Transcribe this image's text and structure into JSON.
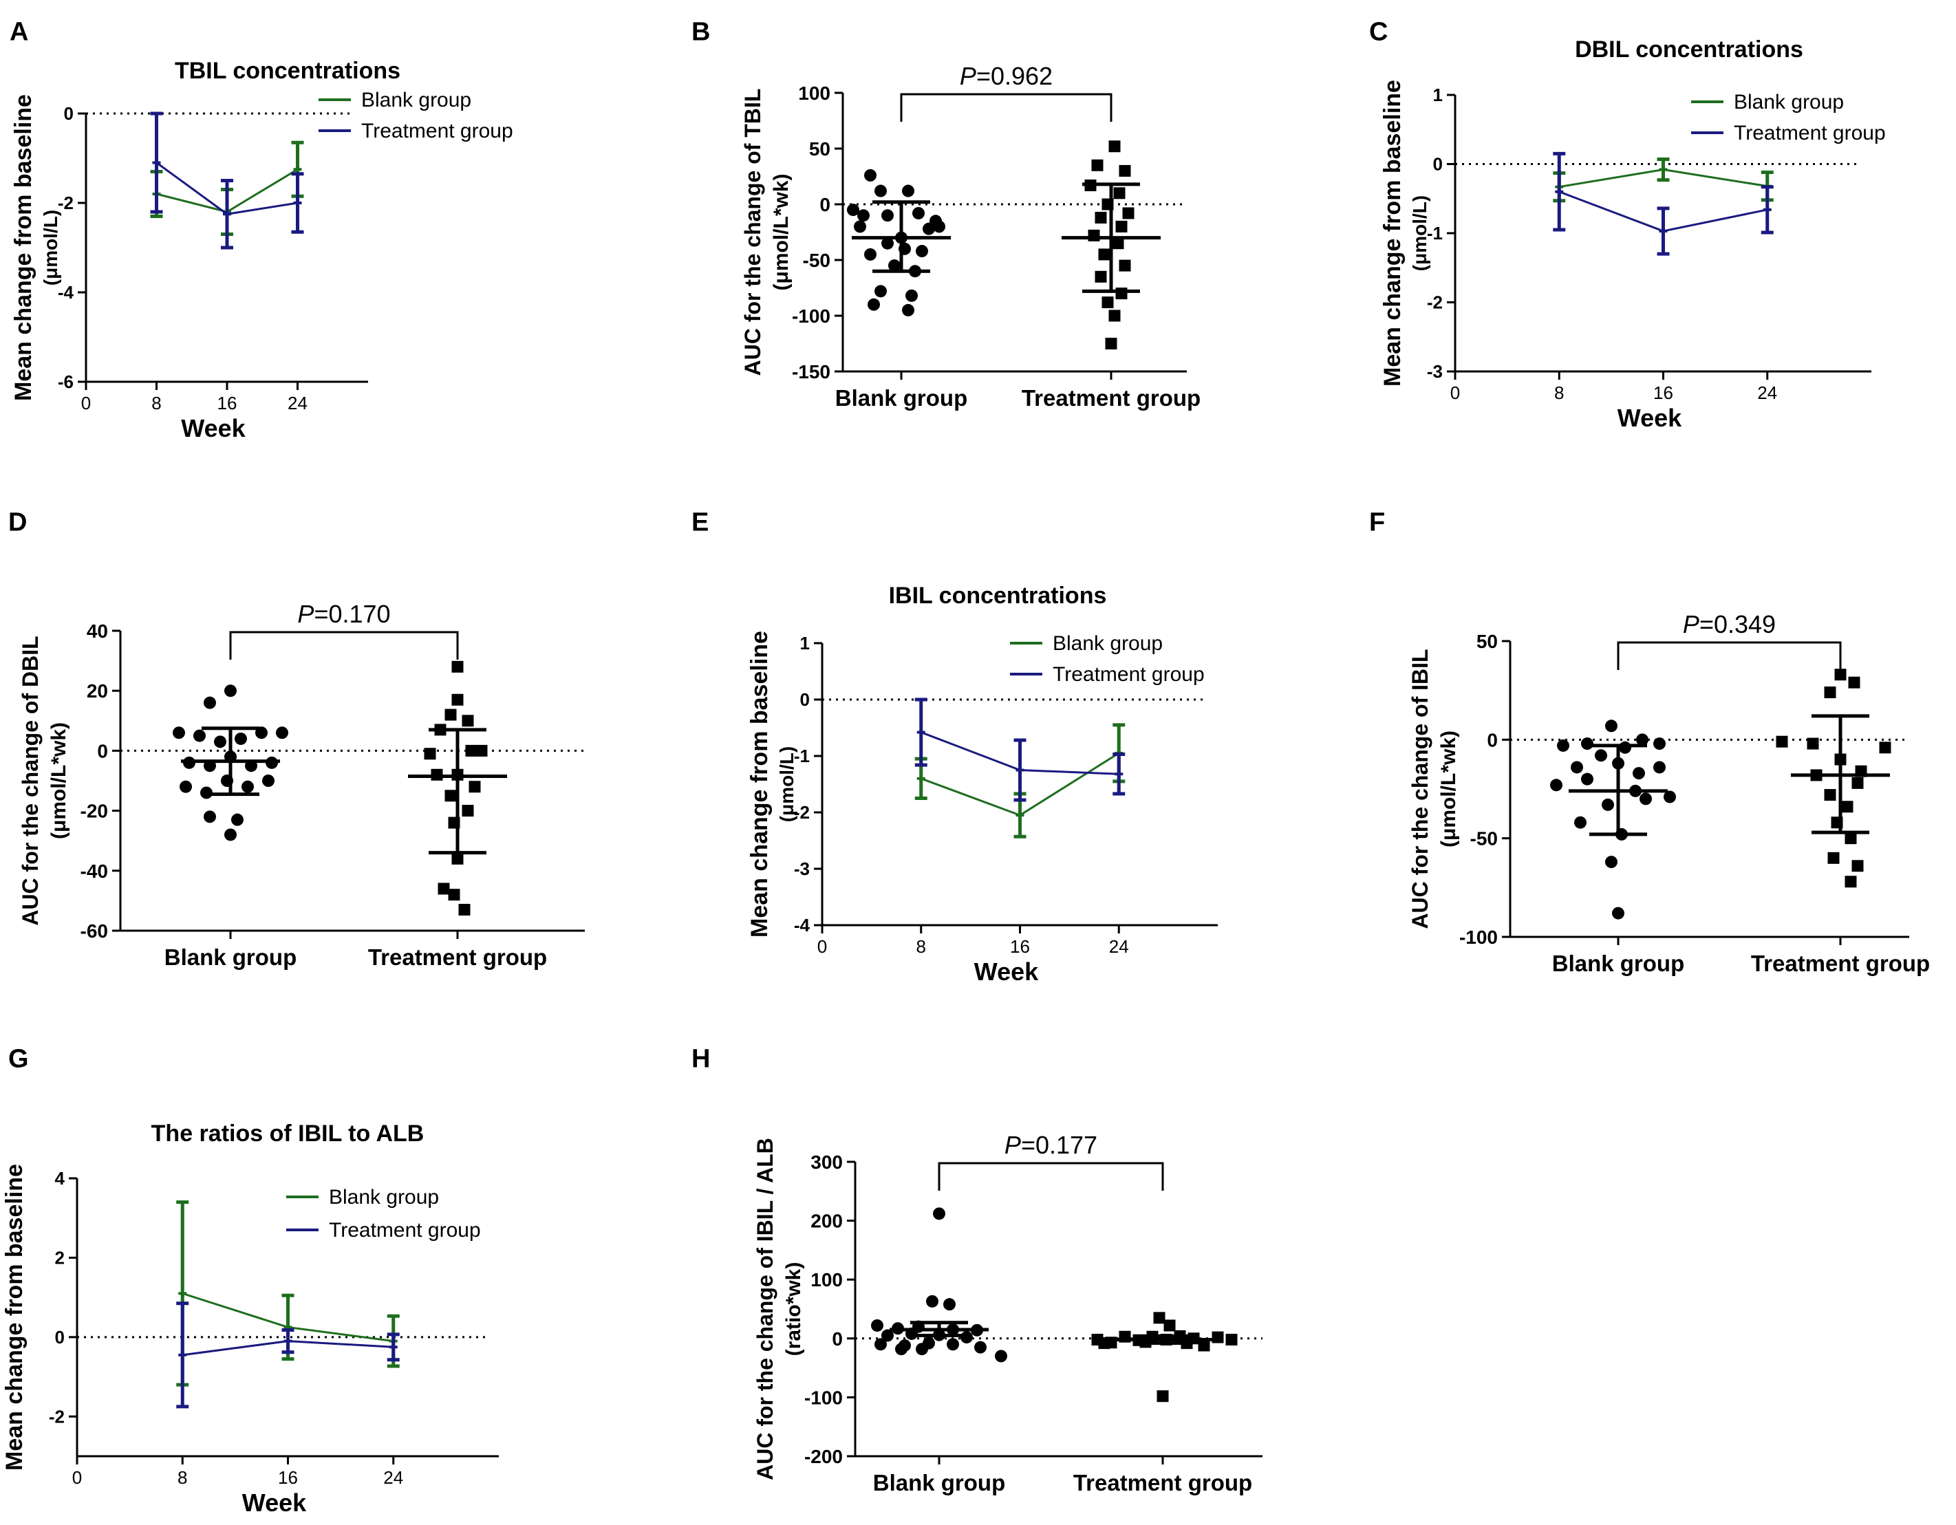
{
  "colors": {
    "blank": "#1e6e1e",
    "treatment": "#1a1a80",
    "axis": "#000000"
  },
  "chart_data": [
    {
      "panel": "A",
      "type": "line",
      "title": "TBIL concentrations",
      "xlabel": "Week",
      "ylabel": "Mean change from baseline",
      "ylabel2": "(μmol/L)",
      "x_ticks": [
        "0",
        "8",
        "16",
        "24"
      ],
      "y_ticks": [
        "0",
        "-2",
        "-4",
        "-6"
      ],
      "xlim": [
        0,
        32
      ],
      "ylim": [
        -6,
        0
      ],
      "x": [
        8,
        16,
        24
      ],
      "legend": "top-right",
      "series": [
        {
          "name": "Blank group",
          "color": "blank",
          "values": [
            -1.8,
            -2.2,
            -1.25
          ],
          "err_low": [
            0.5,
            0.5,
            0.6
          ],
          "err_high": [
            0.5,
            0.5,
            0.6
          ]
        },
        {
          "name": "Treatment group",
          "color": "treatment",
          "values": [
            -1.1,
            -2.25,
            -2.0
          ],
          "err_low": [
            1.1,
            0.75,
            0.65
          ],
          "err_high": [
            1.1,
            0.75,
            0.65
          ]
        }
      ]
    },
    {
      "panel": "B",
      "type": "scatter",
      "ylabel": "AUC for the change of TBIL",
      "ylabel2": "(μmol/L*wk)",
      "categories": [
        "Blank group",
        "Treatment group"
      ],
      "y_ticks": [
        "100",
        "50",
        "0",
        "-50",
        "-100",
        "-150"
      ],
      "ylim": [
        -150,
        100
      ],
      "p_label": "P",
      "p_value": "=0.962",
      "groups": [
        {
          "marker": "circle",
          "mean": -30,
          "sd_low": -60,
          "sd_high": 2,
          "points": [
            [
              -45,
              26
            ],
            [
              -30,
              12
            ],
            [
              10,
              12
            ],
            [
              -20,
              -10
            ],
            [
              -55,
              -10
            ],
            [
              25,
              -8
            ],
            [
              50,
              -15
            ],
            [
              -70,
              -5
            ],
            [
              55,
              -20
            ],
            [
              40,
              -22
            ],
            [
              -60,
              -20
            ],
            [
              -20,
              -35
            ],
            [
              5,
              -40
            ],
            [
              30,
              -42
            ],
            [
              -45,
              -45
            ],
            [
              -10,
              -55
            ],
            [
              20,
              -60
            ],
            [
              -30,
              -78
            ],
            [
              15,
              -82
            ],
            [
              -40,
              -90
            ],
            [
              10,
              -95
            ],
            [
              0,
              -30
            ]
          ]
        },
        {
          "marker": "square",
          "mean": -30,
          "sd_low": -78,
          "sd_high": 18,
          "points": [
            [
              5,
              52
            ],
            [
              -20,
              35
            ],
            [
              20,
              30
            ],
            [
              -30,
              17
            ],
            [
              12,
              10
            ],
            [
              -5,
              0
            ],
            [
              25,
              -8
            ],
            [
              -15,
              -12
            ],
            [
              15,
              -20
            ],
            [
              -25,
              -28
            ],
            [
              10,
              -35
            ],
            [
              -10,
              -45
            ],
            [
              20,
              -55
            ],
            [
              -15,
              -65
            ],
            [
              15,
              -80
            ],
            [
              -5,
              -88
            ],
            [
              5,
              -100
            ],
            [
              0,
              -125
            ]
          ]
        }
      ]
    },
    {
      "panel": "C",
      "type": "line",
      "title": "DBIL concentrations",
      "xlabel": "Week",
      "ylabel": "Mean change from baseline",
      "ylabel2": "(μmol/L)",
      "x_ticks": [
        "0",
        "8",
        "16",
        "24"
      ],
      "y_ticks": [
        "1",
        "0",
        "-1",
        "-2",
        "-3"
      ],
      "xlim": [
        0,
        32
      ],
      "ylim": [
        -3,
        1
      ],
      "x": [
        8,
        16,
        24
      ],
      "legend": "top-right",
      "series": [
        {
          "name": "Blank group",
          "color": "blank",
          "values": [
            -0.33,
            -0.08,
            -0.32
          ],
          "err_low": [
            0.2,
            0.15,
            0.2
          ],
          "err_high": [
            0.2,
            0.15,
            0.2
          ]
        },
        {
          "name": "Treatment group",
          "color": "treatment",
          "values": [
            -0.4,
            -0.97,
            -0.66
          ],
          "err_low": [
            0.55,
            0.33,
            0.33
          ],
          "err_high": [
            0.55,
            0.33,
            0.33
          ]
        }
      ]
    },
    {
      "panel": "D",
      "type": "scatter",
      "ylabel": "AUC for the change of DBIL",
      "ylabel2": "(μmol/L*wk)",
      "categories": [
        "Blank group",
        "Treatment group"
      ],
      "y_ticks": [
        "40",
        "20",
        "0",
        "-20",
        "-40",
        "-60"
      ],
      "ylim": [
        -60,
        40
      ],
      "p_label": "P",
      "p_value": "=0.170",
      "groups": [
        {
          "marker": "circle",
          "mean": -3.5,
          "sd_low": -14.5,
          "sd_high": 7.5,
          "points": [
            [
              0,
              20
            ],
            [
              -30,
              16
            ],
            [
              -75,
              6
            ],
            [
              -45,
              5
            ],
            [
              -15,
              3
            ],
            [
              15,
              4
            ],
            [
              45,
              6
            ],
            [
              75,
              6
            ],
            [
              -60,
              -4
            ],
            [
              -30,
              -5
            ],
            [
              0,
              -2
            ],
            [
              30,
              -5
            ],
            [
              60,
              -4
            ],
            [
              -65,
              -12
            ],
            [
              -35,
              -14
            ],
            [
              -5,
              -10
            ],
            [
              25,
              -12
            ],
            [
              55,
              -10
            ],
            [
              -30,
              -22
            ],
            [
              10,
              -23
            ],
            [
              0,
              -28
            ]
          ]
        },
        {
          "marker": "square",
          "mean": -8.5,
          "sd_low": -34,
          "sd_high": 7,
          "points": [
            [
              0,
              28
            ],
            [
              0,
              17
            ],
            [
              -10,
              12
            ],
            [
              15,
              10
            ],
            [
              -25,
              7
            ],
            [
              20,
              0
            ],
            [
              -40,
              -1
            ],
            [
              35,
              0
            ],
            [
              -30,
              -8
            ],
            [
              0,
              -8
            ],
            [
              25,
              -12
            ],
            [
              -10,
              -15
            ],
            [
              15,
              -20
            ],
            [
              -5,
              -24
            ],
            [
              0,
              -36
            ],
            [
              -20,
              -46
            ],
            [
              -5,
              -48
            ],
            [
              10,
              -53
            ]
          ]
        }
      ]
    },
    {
      "panel": "E",
      "type": "line",
      "title": "IBIL concentrations",
      "xlabel": "Week",
      "ylabel": "Mean change from baseline",
      "ylabel2": "(μmol/L)",
      "x_ticks": [
        "0",
        "8",
        "16",
        "24"
      ],
      "y_ticks": [
        "1",
        "0",
        "-1",
        "-2",
        "-3",
        "-4"
      ],
      "xlim": [
        0,
        32
      ],
      "ylim": [
        -4,
        1
      ],
      "x": [
        8,
        16,
        24
      ],
      "legend": "top-right",
      "series": [
        {
          "name": "Blank group",
          "color": "blank",
          "values": [
            -1.4,
            -2.05,
            -0.95
          ],
          "err_low": [
            0.35,
            0.38,
            0.5
          ],
          "err_high": [
            0.35,
            0.38,
            0.5
          ]
        },
        {
          "name": "Treatment group",
          "color": "treatment",
          "values": [
            -0.58,
            -1.25,
            -1.32
          ],
          "err_low": [
            0.58,
            0.53,
            0.35
          ],
          "err_high": [
            0.58,
            0.53,
            0.35
          ]
        }
      ]
    },
    {
      "panel": "F",
      "type": "scatter",
      "ylabel": "AUC for the change of IBIL",
      "ylabel2": "(μmol/L*wk)",
      "categories": [
        "Blank group",
        "Treatment group"
      ],
      "y_ticks": [
        "50",
        "0",
        "-50",
        "-100"
      ],
      "ylim": [
        -100,
        50
      ],
      "p_label": "P",
      "p_value": "=0.349",
      "groups": [
        {
          "marker": "circle",
          "mean": -26,
          "sd_low": -48,
          "sd_high": -3,
          "points": [
            [
              -10,
              7
            ],
            [
              35,
              0
            ],
            [
              60,
              -2
            ],
            [
              -45,
              -2
            ],
            [
              -80,
              -3
            ],
            [
              10,
              -4
            ],
            [
              -25,
              -8
            ],
            [
              0,
              -12
            ],
            [
              -60,
              -14
            ],
            [
              30,
              -17
            ],
            [
              60,
              -14
            ],
            [
              -90,
              -23
            ],
            [
              -45,
              -20
            ],
            [
              25,
              -26
            ],
            [
              -15,
              -33
            ],
            [
              -55,
              -42
            ],
            [
              5,
              -48
            ],
            [
              -10,
              -62
            ],
            [
              0,
              -88
            ],
            [
              40,
              -30
            ],
            [
              75,
              -29
            ]
          ]
        },
        {
          "marker": "square",
          "mean": -18,
          "sd_low": -47,
          "sd_high": 12,
          "points": [
            [
              0,
              33
            ],
            [
              20,
              29
            ],
            [
              -15,
              24
            ],
            [
              -85,
              -1
            ],
            [
              -40,
              -2
            ],
            [
              65,
              -4
            ],
            [
              0,
              -10
            ],
            [
              30,
              -16
            ],
            [
              -35,
              -18
            ],
            [
              25,
              -22
            ],
            [
              -15,
              -28
            ],
            [
              10,
              -34
            ],
            [
              -5,
              -42
            ],
            [
              15,
              -50
            ],
            [
              -10,
              -60
            ],
            [
              25,
              -64
            ],
            [
              15,
              -72
            ]
          ]
        }
      ]
    },
    {
      "panel": "G",
      "type": "line",
      "title": "The ratios of IBIL to ALB",
      "xlabel": "Week",
      "ylabel": "Mean change from baseline",
      "ylabel2": "",
      "x_ticks": [
        "0",
        "8",
        "16",
        "24"
      ],
      "y_ticks": [
        "4",
        "2",
        "0",
        "-2"
      ],
      "xlim": [
        0,
        32
      ],
      "ylim": [
        -3,
        4
      ],
      "x": [
        8,
        16,
        24
      ],
      "legend": "top-right",
      "series": [
        {
          "name": "Blank group",
          "color": "blank",
          "values": [
            1.1,
            0.25,
            -0.1
          ],
          "err_low": [
            2.3,
            0.8,
            0.63
          ],
          "err_high": [
            2.3,
            0.8,
            0.63
          ]
        },
        {
          "name": "Treatment group",
          "color": "treatment",
          "values": [
            -0.45,
            -0.1,
            -0.25
          ],
          "err_low": [
            1.3,
            0.28,
            0.32
          ],
          "err_high": [
            1.3,
            0.28,
            0.32
          ]
        }
      ]
    },
    {
      "panel": "H",
      "type": "scatter",
      "ylabel": "AUC for the change of IBIL / ALB",
      "ylabel2": "(ratio*wk)",
      "categories": [
        "Blank group",
        "Treatment group"
      ],
      "y_ticks": [
        "300",
        "200",
        "100",
        "0",
        "-100",
        "-200"
      ],
      "ylim": [
        -200,
        300
      ],
      "p_label": "P",
      "p_value": "=0.177",
      "groups": [
        {
          "marker": "circle",
          "mean": 15,
          "sd_low": 5,
          "sd_high": 27,
          "points": [
            [
              0,
              212
            ],
            [
              -10,
              63
            ],
            [
              15,
              58
            ],
            [
              -90,
              22
            ],
            [
              -60,
              17
            ],
            [
              -30,
              20
            ],
            [
              20,
              15
            ],
            [
              55,
              14
            ],
            [
              -75,
              5
            ],
            [
              -40,
              8
            ],
            [
              0,
              6
            ],
            [
              40,
              2
            ],
            [
              -85,
              -10
            ],
            [
              -50,
              -12
            ],
            [
              -15,
              -8
            ],
            [
              20,
              -10
            ],
            [
              60,
              -15
            ],
            [
              -55,
              -18
            ],
            [
              -25,
              -18
            ],
            [
              90,
              -30
            ]
          ]
        },
        {
          "marker": "square",
          "mean": -2,
          "sd_low": -8,
          "sd_high": 4,
          "points": [
            [
              -5,
              35
            ],
            [
              10,
              22
            ],
            [
              -95,
              -2
            ],
            [
              -75,
              -7
            ],
            [
              -55,
              3
            ],
            [
              -35,
              -3
            ],
            [
              -15,
              3
            ],
            [
              5,
              -2
            ],
            [
              25,
              4
            ],
            [
              45,
              0
            ],
            [
              60,
              -12
            ],
            [
              80,
              2
            ],
            [
              100,
              -2
            ],
            [
              -85,
              -8
            ],
            [
              -25,
              -6
            ],
            [
              35,
              -8
            ],
            [
              0,
              -98
            ]
          ]
        }
      ]
    }
  ]
}
